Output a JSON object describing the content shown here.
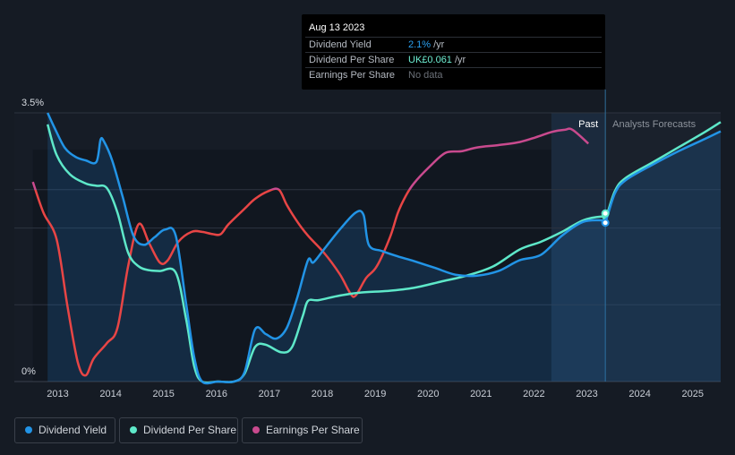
{
  "tooltip": {
    "date": "Aug 13 2023",
    "rows": [
      {
        "label": "Dividend Yield",
        "value": "2.1%",
        "unit": "/yr",
        "color": "#2aa0f0"
      },
      {
        "label": "Dividend Per Share",
        "value": "UK£0.061",
        "unit": "/yr",
        "color": "#6ff0d4"
      },
      {
        "label": "Earnings Per Share",
        "value": "No data",
        "unit": "",
        "color": "#6b7078"
      }
    ]
  },
  "legend": [
    {
      "label": "Dividend Yield",
      "color": "#2294e6"
    },
    {
      "label": "Dividend Per Share",
      "color": "#5ee8c9"
    },
    {
      "label": "Earnings Per Share",
      "color": "#c94a8e"
    }
  ],
  "chart_data": {
    "type": "line",
    "y_tick_labels": [
      "3.5%",
      "0%"
    ],
    "ylim": [
      0,
      3.5
    ],
    "xlim": [
      2012.8,
      2025.8
    ],
    "x_tick_labels": [
      "2013",
      "2014",
      "2015",
      "2016",
      "2017",
      "2018",
      "2019",
      "2020",
      "2021",
      "2022",
      "2023",
      "2024",
      "2025"
    ],
    "past_label": "Past",
    "forecast_label": "Analysts Forecasts",
    "past_region_start": 2022.6,
    "forecast_start": 2023.62,
    "colors": {
      "yield": "#2294e6",
      "dps": "#5ee8c9",
      "eps": "#c94a8e",
      "eps_negative": "#e84545"
    },
    "series": [
      {
        "name": "Dividend Yield",
        "x": [
          2013.08,
          2013.2,
          2013.4,
          2013.6,
          2013.8,
          2014.0,
          2014.08,
          2014.15,
          2014.3,
          2014.5,
          2014.7,
          2014.9,
          2015.1,
          2015.3,
          2015.5,
          2015.7,
          2015.85,
          2016.0,
          2016.3,
          2016.6,
          2016.8,
          2017.0,
          2017.2,
          2017.4,
          2017.6,
          2017.8,
          2018.0,
          2018.1,
          2018.3,
          2018.6,
          2018.9,
          2019.05,
          2019.15,
          2019.4,
          2019.7,
          2020.0,
          2020.4,
          2020.8,
          2021.2,
          2021.6,
          2022.0,
          2022.4,
          2022.8,
          2023.2,
          2023.55,
          2023.62,
          2023.8,
          2024.0,
          2024.5,
          2025.0,
          2025.5,
          2025.8
        ],
        "y": [
          3.5,
          3.32,
          3.05,
          2.93,
          2.88,
          2.86,
          3.15,
          3.12,
          2.88,
          2.4,
          1.9,
          1.78,
          1.88,
          1.98,
          1.9,
          1.0,
          0.32,
          0.0,
          0.0,
          0.0,
          0.12,
          0.68,
          0.62,
          0.56,
          0.7,
          1.1,
          1.58,
          1.55,
          1.72,
          1.98,
          2.2,
          2.17,
          1.78,
          1.7,
          1.63,
          1.57,
          1.48,
          1.39,
          1.38,
          1.44,
          1.58,
          1.65,
          1.9,
          2.08,
          2.1,
          2.08,
          2.45,
          2.62,
          2.82,
          3.0,
          3.16,
          3.26
        ]
      },
      {
        "name": "Dividend Per Share",
        "x": [
          2013.08,
          2013.25,
          2013.5,
          2013.8,
          2014.0,
          2014.2,
          2014.4,
          2014.6,
          2014.8,
          2015.0,
          2015.2,
          2015.5,
          2015.7,
          2015.85,
          2016.0,
          2016.3,
          2016.6,
          2016.8,
          2017.0,
          2017.2,
          2017.5,
          2017.7,
          2017.9,
          2018.0,
          2018.2,
          2018.6,
          2019.0,
          2019.5,
          2020.0,
          2020.5,
          2021.0,
          2021.5,
          2022.0,
          2022.4,
          2022.8,
          2023.2,
          2023.55,
          2023.62,
          2023.8,
          2024.0,
          2024.5,
          2025.0,
          2025.5,
          2025.8
        ],
        "y": [
          3.35,
          2.95,
          2.7,
          2.58,
          2.55,
          2.52,
          2.2,
          1.68,
          1.5,
          1.45,
          1.44,
          1.42,
          0.8,
          0.2,
          0.0,
          0.0,
          0.0,
          0.1,
          0.45,
          0.48,
          0.38,
          0.45,
          0.85,
          1.05,
          1.06,
          1.12,
          1.16,
          1.18,
          1.22,
          1.3,
          1.38,
          1.5,
          1.72,
          1.82,
          1.95,
          2.1,
          2.15,
          2.12,
          2.48,
          2.65,
          2.85,
          3.05,
          3.25,
          3.38
        ]
      },
      {
        "name": "Earnings Per Share",
        "x": [
          2012.8,
          2013.0,
          2013.25,
          2013.45,
          2013.65,
          2013.8,
          2013.95,
          2014.2,
          2014.4,
          2014.6,
          2014.8,
          2015.0,
          2015.2,
          2015.35,
          2015.55,
          2015.8,
          2016.0,
          2016.2,
          2016.35,
          2016.5,
          2016.8,
          2017.0,
          2017.25,
          2017.45,
          2017.6,
          2017.8,
          2018.0,
          2018.3,
          2018.6,
          2018.8,
          2018.9,
          2019.1,
          2019.3,
          2019.55,
          2019.7,
          2019.85,
          2020.0,
          2020.3,
          2020.6,
          2020.9,
          2021.2,
          2021.6,
          2022.0,
          2022.3,
          2022.6,
          2022.85,
          2023.0,
          2023.3
        ],
        "y": [
          2.6,
          2.2,
          1.85,
          1.0,
          0.25,
          0.08,
          0.3,
          0.5,
          0.7,
          1.5,
          2.05,
          1.8,
          1.55,
          1.58,
          1.82,
          1.95,
          1.95,
          1.92,
          1.92,
          2.05,
          2.25,
          2.38,
          2.48,
          2.5,
          2.3,
          2.08,
          1.9,
          1.68,
          1.4,
          1.15,
          1.12,
          1.35,
          1.5,
          1.88,
          2.2,
          2.42,
          2.58,
          2.8,
          2.98,
          3.0,
          3.05,
          3.08,
          3.12,
          3.18,
          3.25,
          3.28,
          3.28,
          3.1
        ]
      }
    ]
  }
}
